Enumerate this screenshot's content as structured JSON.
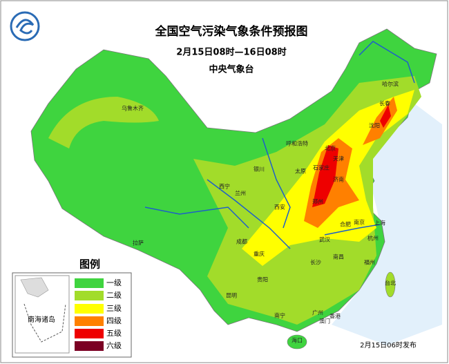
{
  "header": {
    "title": "全国空气污染气象条件预报图",
    "subtitle": "2月15日08时—16日08时",
    "issuer": "中央气象台"
  },
  "legend": {
    "title": "图例",
    "items": [
      {
        "label": "一级",
        "color": "#3fd43f"
      },
      {
        "label": "二级",
        "color": "#a2dc2a"
      },
      {
        "label": "三级",
        "color": "#ffff00"
      },
      {
        "label": "四级",
        "color": "#ff8000"
      },
      {
        "label": "五级",
        "color": "#ee0000"
      },
      {
        "label": "六级",
        "color": "#7b0023"
      }
    ],
    "inset": "南海诸岛"
  },
  "cities": [
    "乌鲁木齐",
    "哈尔滨",
    "长春",
    "沈阳",
    "呼和浩特",
    "北京",
    "天津",
    "石家庄",
    "太原",
    "济南",
    "银川",
    "西宁",
    "兰州",
    "郑州",
    "西安",
    "合肥",
    "南京",
    "上海",
    "武汉",
    "杭州",
    "成都",
    "重庆",
    "拉萨",
    "长沙",
    "南昌",
    "贵阳",
    "昆明",
    "福州",
    "台北",
    "南宁",
    "广州",
    "香港",
    "澳门",
    "海口"
  ],
  "footer": "2月15日06时发布"
}
